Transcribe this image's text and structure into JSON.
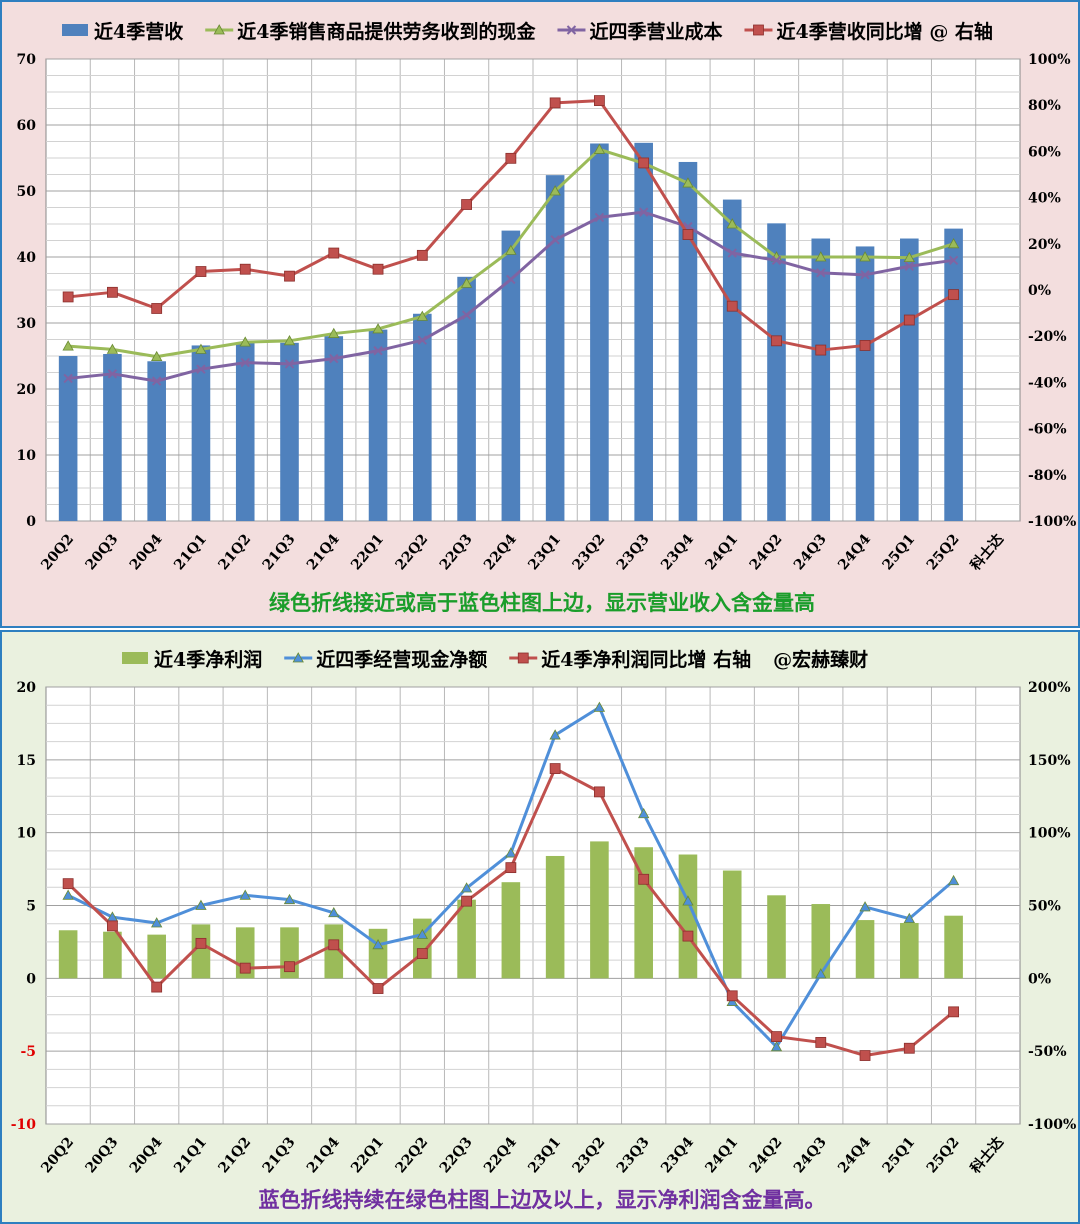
{
  "chart_data": [
    {
      "type": "bar+line",
      "categories": [
        "20Q2",
        "20Q3",
        "20Q4",
        "21Q1",
        "21Q2",
        "21Q3",
        "21Q4",
        "22Q1",
        "22Q2",
        "22Q3",
        "22Q4",
        "23Q1",
        "23Q2",
        "23Q3",
        "23Q4",
        "24Q1",
        "24Q2",
        "24Q3",
        "24Q4",
        "25Q1",
        "25Q2",
        "科士达"
      ],
      "ylim": [
        0,
        70
      ],
      "y_ticks": [
        "0",
        "10",
        "20",
        "30",
        "40",
        "50",
        "60",
        "70"
      ],
      "y2lim": [
        -100,
        100
      ],
      "y2_ticks": [
        "-100%",
        "-80%",
        "-60%",
        "-40%",
        "-20%",
        "0%",
        "20%",
        "40%",
        "60%",
        "80%",
        "100%"
      ],
      "legend_position": "top",
      "grid": true,
      "series": [
        {
          "name": "近4季营收",
          "type": "bar",
          "axis": "left",
          "color": "#4f81bd",
          "values": [
            25.0,
            25.3,
            24.2,
            26.6,
            27.0,
            27.0,
            28.0,
            29.0,
            31.4,
            37.0,
            44.0,
            52.4,
            57.2,
            57.3,
            54.4,
            48.7,
            45.1,
            42.8,
            41.6,
            42.8,
            44.3,
            null
          ]
        },
        {
          "name": "近4季销售商品提供劳务收到的现金",
          "type": "line",
          "axis": "left",
          "color": "#9bbb59",
          "marker": "triangle",
          "values": [
            26.5,
            26.0,
            24.9,
            26.0,
            27.1,
            27.3,
            28.4,
            29.1,
            31.0,
            36.0,
            41.0,
            50.0,
            56.3,
            54.2,
            51.2,
            45.0,
            40.0,
            40.0,
            40.0,
            39.9,
            42.0,
            null
          ]
        },
        {
          "name": "近四季营业成本",
          "type": "line",
          "axis": "left",
          "color": "#8064a2",
          "marker": "x",
          "values": [
            21.6,
            22.3,
            21.2,
            23.0,
            24.0,
            23.8,
            24.6,
            25.8,
            27.4,
            31.2,
            36.6,
            42.6,
            46.0,
            46.8,
            44.6,
            40.6,
            39.5,
            37.6,
            37.3,
            38.6,
            39.5,
            null
          ]
        },
        {
          "name": "近4季营收同比增 @ 右轴",
          "type": "line",
          "axis": "right",
          "color": "#c0504d",
          "marker": "square",
          "values": [
            -3,
            -1,
            -8,
            8,
            9,
            6,
            16,
            9,
            15,
            37,
            57,
            81,
            82,
            55,
            24,
            -7,
            -22,
            -26,
            -24,
            -13,
            -2,
            null
          ]
        }
      ],
      "annotation": "绿色折线接近或高于蓝色柱图上边，显示营业收入含金量高"
    },
    {
      "type": "bar+line",
      "categories": [
        "20Q2",
        "20Q3",
        "20Q4",
        "21Q1",
        "21Q2",
        "21Q3",
        "21Q4",
        "22Q1",
        "22Q2",
        "22Q3",
        "22Q4",
        "23Q1",
        "23Q2",
        "23Q3",
        "23Q4",
        "24Q1",
        "24Q2",
        "24Q3",
        "24Q4",
        "25Q1",
        "25Q2",
        "科士达"
      ],
      "ylim": [
        -10,
        20
      ],
      "y_ticks": [
        "-10",
        "-5",
        "0",
        "5",
        "10",
        "15",
        "20"
      ],
      "y2lim": [
        -100,
        200
      ],
      "y2_ticks": [
        "-100%",
        "-50%",
        "0%",
        "50%",
        "100%",
        "150%",
        "200%"
      ],
      "legend_position": "top",
      "grid": true,
      "series": [
        {
          "name": "近4季净利润",
          "type": "bar",
          "axis": "left",
          "color": "#9bbb59",
          "values": [
            3.3,
            3.2,
            3.0,
            3.7,
            3.5,
            3.5,
            3.7,
            3.4,
            4.1,
            5.4,
            6.6,
            8.4,
            9.4,
            9.0,
            8.5,
            7.4,
            5.7,
            5.1,
            4.0,
            3.8,
            4.3,
            null
          ]
        },
        {
          "name": "近四季经营现金净额",
          "type": "line",
          "axis": "left",
          "color": "#4f8fd9",
          "marker": "triangle",
          "values": [
            5.7,
            4.2,
            3.8,
            5.0,
            5.7,
            5.4,
            4.5,
            2.3,
            3.0,
            6.2,
            8.6,
            16.7,
            18.6,
            11.3,
            5.3,
            -1.6,
            -4.7,
            0.3,
            4.9,
            4.1,
            6.7,
            null
          ]
        },
        {
          "name": "近4季净利润同比增 右轴",
          "type": "line",
          "axis": "right",
          "color": "#c0504d",
          "marker": "square",
          "values": [
            65,
            36,
            -6,
            24,
            7,
            8,
            23,
            -7,
            17,
            53,
            76,
            144,
            128,
            68,
            29,
            -12,
            -40,
            -44,
            -53,
            -48,
            -23,
            null
          ]
        }
      ],
      "extra_legend_text": "@宏赫臻财",
      "annotation": "蓝色折线持续在绿色柱图上边及以上，显示净利润含金量高。"
    }
  ]
}
